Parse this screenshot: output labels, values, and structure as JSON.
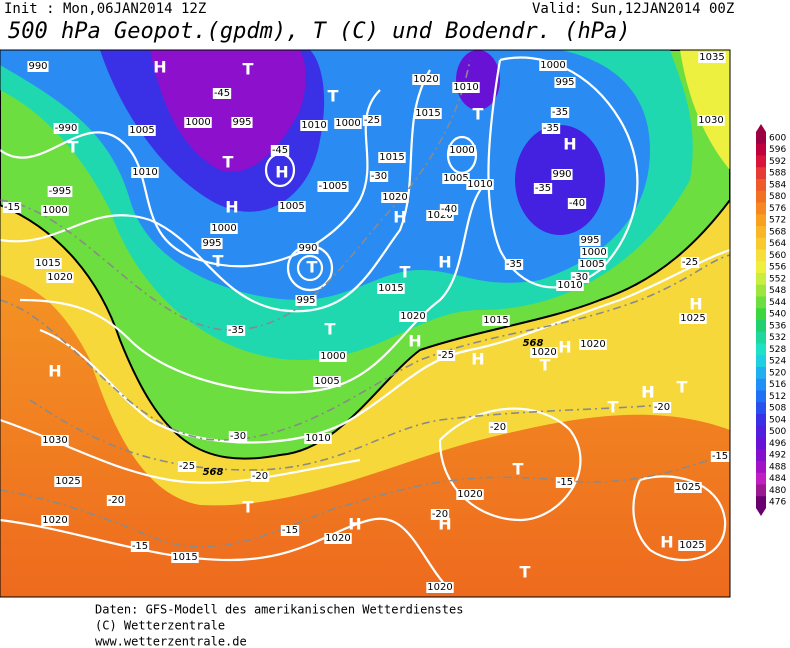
{
  "header": {
    "init": "Init : Mon,06JAN2014 12Z",
    "valid": "Valid: Sun,12JAN2014 00Z",
    "title": "500 hPa Geopot.(gpdm), T (C) und Bodendr. (hPa)"
  },
  "map": {
    "centers": [
      "H",
      "T",
      "T",
      "T",
      "T",
      "T",
      "H",
      "H",
      "H",
      "T",
      "T",
      "T",
      "H",
      "H",
      "H",
      "H",
      "H",
      "T",
      "H",
      "H",
      "T",
      "H",
      "H",
      "T",
      "H",
      "T",
      "H",
      "T",
      "T",
      "H",
      "T"
    ],
    "labels": [
      "990",
      "-45",
      "1000",
      "995",
      "-990",
      "1005",
      "1010",
      "1010",
      "1000",
      "-25",
      "1020",
      "1010",
      "1015",
      "1000",
      "1005",
      "1010",
      "1015",
      "-30",
      "1020",
      "1020",
      "-40",
      "1000",
      "995",
      "-35",
      "-35",
      "990",
      "-35",
      "-40",
      "995",
      "1000",
      "1005",
      "-30",
      "1010",
      "1030",
      "1035",
      "-995",
      "1000",
      "-15",
      "1015",
      "1020",
      "-45",
      "-1005",
      "1005",
      "1000",
      "995",
      "990",
      "995",
      "-35",
      "1000",
      "1005",
      "1015",
      "1020",
      "-35",
      "1015",
      "-25",
      "1020",
      "1020",
      "1025",
      "-25",
      "1010",
      "-30",
      "1030",
      "-25",
      "-20",
      "1025",
      "-20",
      "1020",
      "-15",
      "1015",
      "-15",
      "1020",
      "-20",
      "1020",
      "-15",
      "-20",
      "-15",
      "1025",
      "1025",
      "1020",
      "-20"
    ],
    "thickness_labels": [
      "568",
      "568"
    ]
  },
  "legend": {
    "levels": [
      {
        "label": "600",
        "color": "#9c0042"
      },
      {
        "label": "596",
        "color": "#c0003c"
      },
      {
        "label": "592",
        "color": "#d8143a"
      },
      {
        "label": "588",
        "color": "#e63a34"
      },
      {
        "label": "584",
        "color": "#ee5a2a"
      },
      {
        "label": "580",
        "color": "#f27022"
      },
      {
        "label": "576",
        "color": "#f58820"
      },
      {
        "label": "572",
        "color": "#f8a020"
      },
      {
        "label": "568",
        "color": "#f8b628"
      },
      {
        "label": "564",
        "color": "#f8ca30"
      },
      {
        "label": "560",
        "color": "#f6de3c"
      },
      {
        "label": "556",
        "color": "#eef040"
      },
      {
        "label": "552",
        "color": "#c8ee40"
      },
      {
        "label": "548",
        "color": "#9ee63e"
      },
      {
        "label": "544",
        "color": "#6cde40"
      },
      {
        "label": "540",
        "color": "#3cd640"
      },
      {
        "label": "536",
        "color": "#22d070"
      },
      {
        "label": "532",
        "color": "#20d89e"
      },
      {
        "label": "528",
        "color": "#20e0c8"
      },
      {
        "label": "524",
        "color": "#20cfe2"
      },
      {
        "label": "520",
        "color": "#20b0f0"
      },
      {
        "label": "516",
        "color": "#2090f8"
      },
      {
        "label": "512",
        "color": "#2070f6"
      },
      {
        "label": "508",
        "color": "#2850ee"
      },
      {
        "label": "504",
        "color": "#3a30e6"
      },
      {
        "label": "500",
        "color": "#5020de"
      },
      {
        "label": "496",
        "color": "#6812d6"
      },
      {
        "label": "492",
        "color": "#8410ce"
      },
      {
        "label": "488",
        "color": "#a412c6"
      },
      {
        "label": "484",
        "color": "#c020c0"
      },
      {
        "label": "480",
        "color": "#9a1890"
      },
      {
        "label": "476",
        "color": "#6a0070"
      }
    ]
  },
  "footer": {
    "lines": [
      "Daten: GFS-Modell des amerikanischen Wetterdienstes",
      "(C) Wetterzentrale",
      "www.wetterzentrale.de"
    ]
  }
}
